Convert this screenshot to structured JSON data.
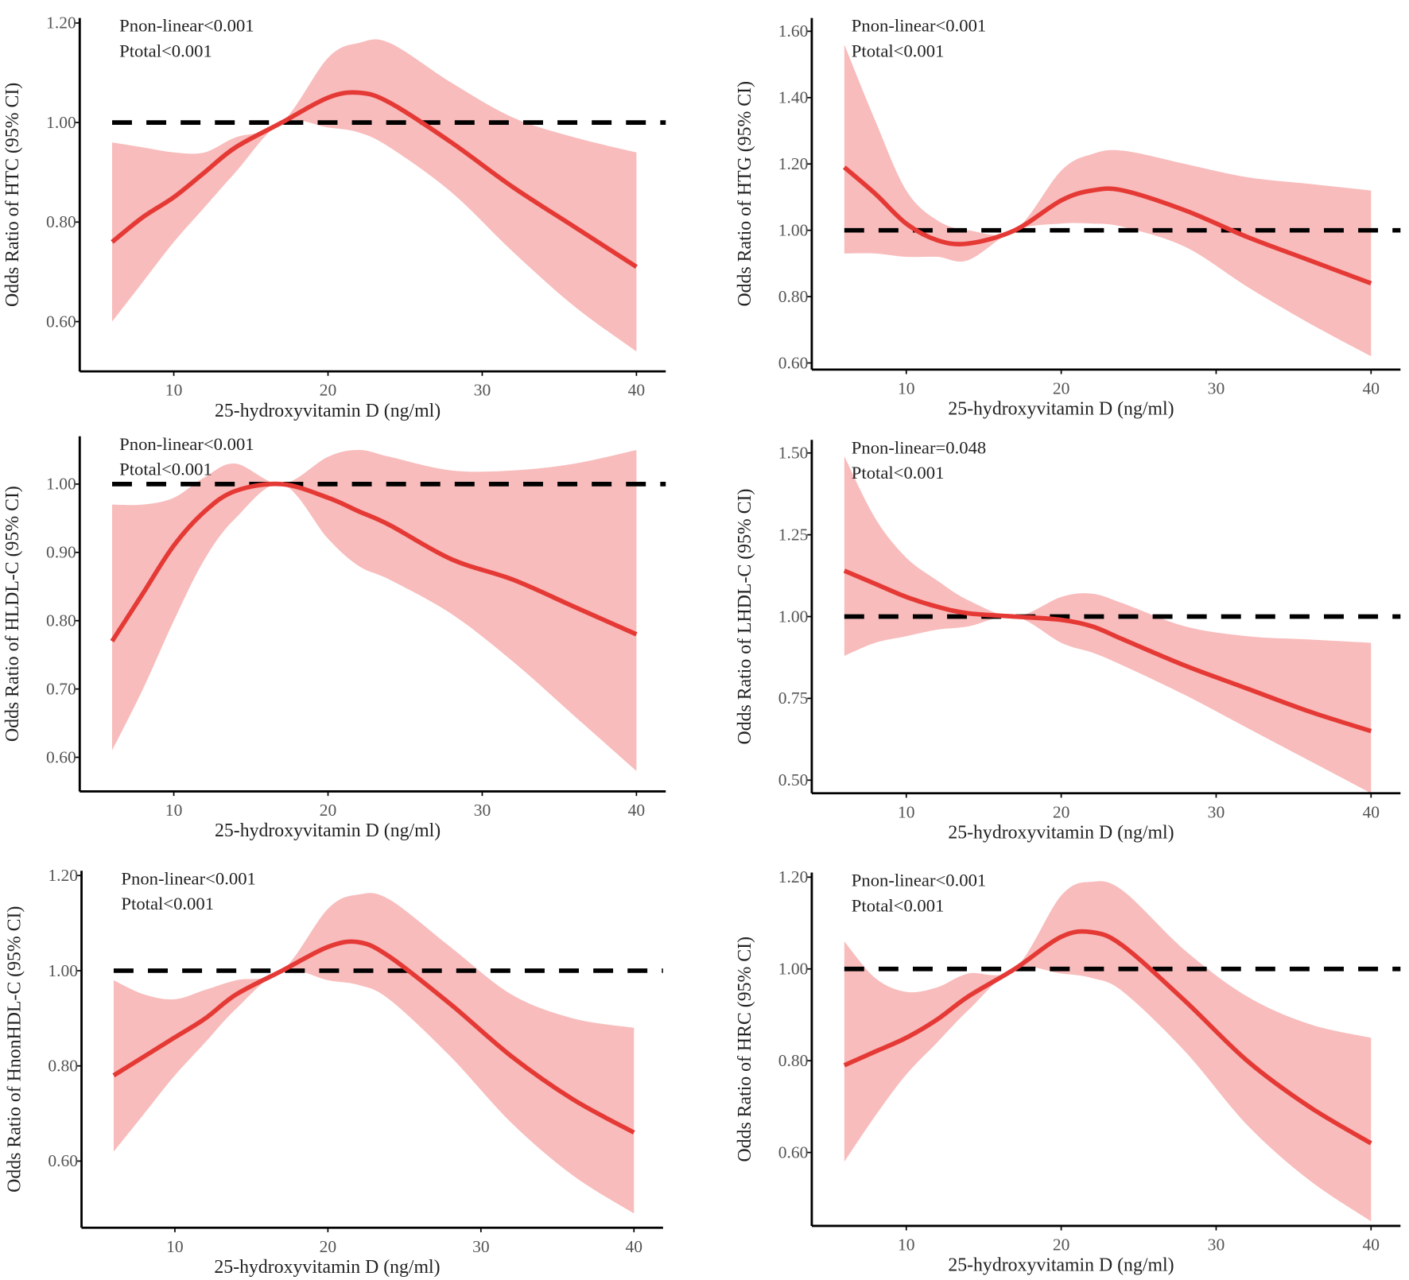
{
  "chart_data": [
    {
      "type": "spline_ci",
      "ylabel": "Odds Ratio of HTC (95% CI)",
      "xlabel": "25-hydroxyvitamin D (ng/ml)",
      "annotations": [
        "Pnon-linear<0.001",
        "Ptotal<0.001"
      ],
      "x": [
        6,
        8,
        10,
        12,
        14,
        17,
        20,
        22,
        24,
        28,
        32,
        36,
        40
      ],
      "values": [
        0.76,
        0.81,
        0.85,
        0.9,
        0.95,
        1.0,
        1.05,
        1.06,
        1.04,
        0.96,
        0.87,
        0.79,
        0.71
      ],
      "ci_lower": [
        0.6,
        0.68,
        0.76,
        0.83,
        0.9,
        1.0,
        0.99,
        0.98,
        0.95,
        0.86,
        0.74,
        0.63,
        0.54
      ],
      "ci_upper": [
        0.96,
        0.95,
        0.94,
        0.94,
        0.97,
        1.0,
        1.13,
        1.16,
        1.16,
        1.08,
        1.01,
        0.97,
        0.94
      ],
      "color": "#e53935",
      "band_color": "#f8bcbc",
      "reference_line": 1,
      "xlim": [
        3.9,
        41.9
      ],
      "xticks": [
        10,
        20,
        30,
        40
      ],
      "ylim": [
        0.5,
        1.21
      ],
      "yticks": [
        {
          "value": 0.6,
          "label": "0.60"
        },
        {
          "value": 0.8,
          "label": "0.80"
        },
        {
          "value": 1.0,
          "label": "1.00"
        },
        {
          "value": 1.2,
          "label": "1.20"
        }
      ]
    },
    {
      "type": "spline_ci",
      "ylabel": "Odds Ratio of HTG (95% CI)",
      "xlabel": "25-hydroxyvitamin D (ng/ml)",
      "annotations": [
        "Pnon-linear<0.001",
        "Ptotal<0.001"
      ],
      "x": [
        6,
        8,
        10,
        12,
        14,
        17,
        20,
        22,
        24,
        28,
        32,
        36,
        40
      ],
      "values": [
        1.19,
        1.11,
        1.02,
        0.97,
        0.96,
        1.0,
        1.09,
        1.12,
        1.12,
        1.06,
        0.98,
        0.91,
        0.84
      ],
      "ci_lower": [
        0.93,
        0.93,
        0.92,
        0.92,
        0.91,
        1.0,
        1.02,
        1.02,
        1.01,
        0.95,
        0.83,
        0.72,
        0.62
      ],
      "ci_upper": [
        1.56,
        1.33,
        1.12,
        1.03,
        1.0,
        1.0,
        1.18,
        1.23,
        1.24,
        1.2,
        1.16,
        1.14,
        1.12
      ],
      "color": "#e53935",
      "band_color": "#f8bcbc",
      "reference_line": 1,
      "xlim": [
        3.9,
        41.9
      ],
      "xticks": [
        10,
        20,
        30,
        40
      ],
      "ylim": [
        0.58,
        1.64
      ],
      "yticks": [
        {
          "value": 0.6,
          "label": "0.60"
        },
        {
          "value": 0.8,
          "label": "0.80"
        },
        {
          "value": 1.0,
          "label": "1.00"
        },
        {
          "value": 1.2,
          "label": "1.20"
        },
        {
          "value": 1.4,
          "label": "1.40"
        },
        {
          "value": 1.6,
          "label": "1.60"
        }
      ]
    },
    {
      "type": "spline_ci",
      "ylabel": "Odds Ratio of HLDL-C (95% CI)",
      "xlabel": "25-hydroxyvitamin D (ng/ml)",
      "annotations": [
        "Pnon-linear<0.001",
        "Ptotal<0.001"
      ],
      "x": [
        6,
        8,
        10,
        12,
        14,
        17,
        20,
        22,
        24,
        28,
        32,
        36,
        40
      ],
      "values": [
        0.77,
        0.84,
        0.91,
        0.96,
        0.99,
        1.0,
        0.98,
        0.96,
        0.94,
        0.89,
        0.86,
        0.82,
        0.78
      ],
      "ci_lower": [
        0.61,
        0.7,
        0.8,
        0.89,
        0.95,
        1.0,
        0.92,
        0.88,
        0.86,
        0.81,
        0.74,
        0.66,
        0.58
      ],
      "ci_upper": [
        0.97,
        0.97,
        0.98,
        1.01,
        1.03,
        1.0,
        1.04,
        1.05,
        1.04,
        1.02,
        1.02,
        1.03,
        1.05
      ],
      "color": "#e53935",
      "band_color": "#f8bcbc",
      "reference_line": 1,
      "xlim": [
        3.9,
        41.9
      ],
      "xticks": [
        10,
        20,
        30,
        40
      ],
      "ylim": [
        0.55,
        1.07
      ],
      "yticks": [
        {
          "value": 0.6,
          "label": "0.60"
        },
        {
          "value": 0.7,
          "label": "0.70"
        },
        {
          "value": 0.8,
          "label": "0.80"
        },
        {
          "value": 0.9,
          "label": "0.90"
        },
        {
          "value": 1.0,
          "label": "1.00"
        }
      ]
    },
    {
      "type": "spline_ci",
      "ylabel": "Odds Ratio of LHDL-C (95% CI)",
      "xlabel": "25-hydroxyvitamin D (ng/ml)",
      "annotations": [
        "Pnon-linear=0.048",
        "Ptotal<0.001"
      ],
      "x": [
        6,
        8,
        10,
        12,
        14,
        17,
        20,
        22,
        24,
        28,
        32,
        36,
        40
      ],
      "values": [
        1.14,
        1.1,
        1.06,
        1.03,
        1.01,
        1.0,
        0.99,
        0.97,
        0.93,
        0.85,
        0.78,
        0.71,
        0.65
      ],
      "ci_lower": [
        0.88,
        0.92,
        0.94,
        0.96,
        0.97,
        1.0,
        0.92,
        0.89,
        0.85,
        0.76,
        0.66,
        0.56,
        0.46
      ],
      "ci_upper": [
        1.49,
        1.3,
        1.18,
        1.11,
        1.05,
        1.0,
        1.06,
        1.07,
        1.04,
        0.97,
        0.94,
        0.93,
        0.92
      ],
      "color": "#e53935",
      "band_color": "#f8bcbc",
      "reference_line": 1,
      "xlim": [
        3.9,
        41.9
      ],
      "xticks": [
        10,
        20,
        30,
        40
      ],
      "ylim": [
        0.46,
        1.54
      ],
      "yticks": [
        {
          "value": 0.5,
          "label": "0.50"
        },
        {
          "value": 0.75,
          "label": "0.75"
        },
        {
          "value": 1.0,
          "label": "1.00"
        },
        {
          "value": 1.25,
          "label": "1.25"
        },
        {
          "value": 1.5,
          "label": "1.50"
        }
      ]
    },
    {
      "type": "spline_ci",
      "ylabel": "Odds Ratio of HnonHDL-C (95% CI)",
      "xlabel": "25-hydroxyvitamin D (ng/ml)",
      "annotations": [
        "Pnon-linear<0.001",
        "Ptotal<0.001"
      ],
      "x": [
        6,
        8,
        10,
        12,
        14,
        17,
        20,
        22,
        24,
        28,
        32,
        36,
        40
      ],
      "values": [
        0.78,
        0.82,
        0.86,
        0.9,
        0.95,
        1.0,
        1.05,
        1.06,
        1.03,
        0.93,
        0.82,
        0.73,
        0.66
      ],
      "ci_lower": [
        0.62,
        0.7,
        0.78,
        0.85,
        0.92,
        1.0,
        0.98,
        0.97,
        0.94,
        0.82,
        0.68,
        0.57,
        0.49
      ],
      "ci_upper": [
        0.98,
        0.95,
        0.94,
        0.96,
        0.98,
        1.0,
        1.13,
        1.16,
        1.15,
        1.05,
        0.95,
        0.9,
        0.88
      ],
      "color": "#e53935",
      "band_color": "#f8bcbc",
      "reference_line": 1,
      "xlim": [
        3.9,
        41.9
      ],
      "xticks": [
        10,
        20,
        30,
        40
      ],
      "ylim": [
        0.46,
        1.21
      ],
      "yticks": [
        {
          "value": 0.6,
          "label": "0.60"
        },
        {
          "value": 0.8,
          "label": "0.80"
        },
        {
          "value": 1.0,
          "label": "1.00"
        },
        {
          "value": 1.2,
          "label": "1.20"
        }
      ]
    },
    {
      "type": "spline_ci",
      "ylabel": "Odds Ratio of HRC (95% CI)",
      "xlabel": "25-hydroxyvitamin D (ng/ml)",
      "annotations": [
        "Pnon-linear<0.001",
        "Ptotal<0.001"
      ],
      "x": [
        6,
        8,
        10,
        12,
        14,
        17,
        20,
        22,
        24,
        28,
        32,
        36,
        40
      ],
      "values": [
        0.79,
        0.82,
        0.85,
        0.89,
        0.94,
        1.0,
        1.07,
        1.08,
        1.05,
        0.93,
        0.8,
        0.7,
        0.62
      ],
      "ci_lower": [
        0.58,
        0.68,
        0.77,
        0.84,
        0.91,
        1.0,
        0.99,
        0.98,
        0.95,
        0.82,
        0.66,
        0.54,
        0.45
      ],
      "ci_upper": [
        1.06,
        0.98,
        0.95,
        0.96,
        0.99,
        1.0,
        1.16,
        1.19,
        1.17,
        1.04,
        0.94,
        0.88,
        0.85
      ],
      "color": "#e53935",
      "band_color": "#f8bcbc",
      "reference_line": 1,
      "xlim": [
        3.9,
        41.9
      ],
      "xticks": [
        10,
        20,
        30,
        40
      ],
      "ylim": [
        0.44,
        1.21
      ],
      "yticks": [
        {
          "value": 0.6,
          "label": "0.60"
        },
        {
          "value": 0.8,
          "label": "0.80"
        },
        {
          "value": 1.0,
          "label": "1.00"
        },
        {
          "value": 1.2,
          "label": "1.20"
        }
      ]
    }
  ]
}
